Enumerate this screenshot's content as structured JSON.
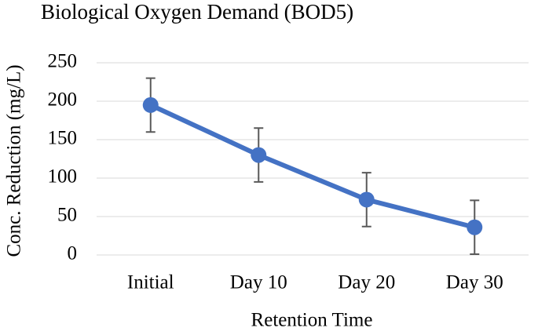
{
  "chart_data": {
    "type": "line",
    "title": "Biological Oxygen Demand (BOD5)",
    "x_label": "Retention Time",
    "y_label": "Conc. Reduction (mg/L)",
    "categories": [
      "Initial",
      "Day 10",
      "Day 20",
      "Day 30"
    ],
    "series": [
      {
        "name": "BOD5",
        "color": "#4472c4",
        "values": [
          195,
          130,
          72,
          36
        ],
        "errors": [
          35,
          35,
          35,
          35
        ]
      }
    ],
    "ylim": [
      0,
      250
    ],
    "yticks": [
      0,
      50,
      100,
      150,
      200,
      250
    ],
    "grid": true,
    "legend": false
  }
}
